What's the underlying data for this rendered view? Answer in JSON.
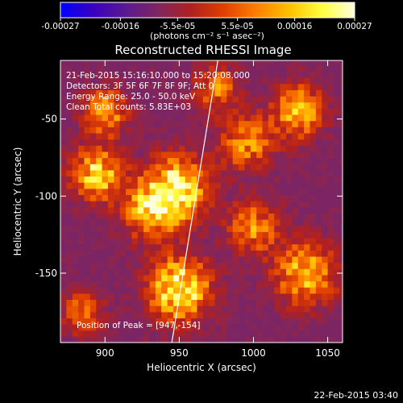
{
  "colorbar": {
    "ticks": [
      "-0.00027",
      "-0.00016",
      "-5.5e-05",
      "5.5e-05",
      "0.00016",
      "0.00027"
    ],
    "tick_values": [
      -0.00027,
      -0.00016,
      -5.5e-05,
      5.5e-05,
      0.00016,
      0.00027
    ],
    "range": [
      -0.00027,
      0.00027
    ],
    "unit_label": "(photons cm⁻² s⁻¹ asec⁻²)",
    "colormap": [
      "#0000ff",
      "#3a00c0",
      "#5a1a90",
      "#80265f",
      "#b02020",
      "#e04000",
      "#ff8000",
      "#ffc000",
      "#ffff40",
      "#ffffe0"
    ]
  },
  "chart_data": {
    "type": "heatmap",
    "title": "Reconstructed RHESSI Image",
    "xlabel": "Heliocentric X (arcsec)",
    "ylabel": "Heliocentric Y (arcsec)",
    "xlim": [
      870,
      1060
    ],
    "ylim": [
      -195,
      -12
    ],
    "x_ticks": [
      900,
      950,
      1000,
      1050
    ],
    "y_ticks": [
      -50,
      -100,
      -150
    ],
    "x_tick_labels": [
      "900",
      "950",
      "1000",
      "1050"
    ],
    "y_tick_labels": [
      "-50",
      "-100",
      "-150"
    ],
    "pixel_size_arcsec": 4,
    "hot_spots": [
      {
        "x": 948,
        "y": -95,
        "amp": 1.0,
        "sigma": 14
      },
      {
        "x": 950,
        "y": -160,
        "amp": 1.0,
        "sigma": 14
      },
      {
        "x": 930,
        "y": -110,
        "amp": 0.7,
        "sigma": 12
      },
      {
        "x": 895,
        "y": -85,
        "amp": 0.8,
        "sigma": 12
      },
      {
        "x": 900,
        "y": -45,
        "amp": 0.7,
        "sigma": 10
      },
      {
        "x": 995,
        "y": -65,
        "amp": 0.6,
        "sigma": 12
      },
      {
        "x": 1030,
        "y": -45,
        "amp": 0.7,
        "sigma": 12
      },
      {
        "x": 1035,
        "y": -150,
        "amp": 0.75,
        "sigma": 14
      },
      {
        "x": 1000,
        "y": -120,
        "amp": 0.55,
        "sigma": 12
      },
      {
        "x": 975,
        "y": -30,
        "amp": 0.5,
        "sigma": 10
      },
      {
        "x": 885,
        "y": -175,
        "amp": 0.45,
        "sigma": 10
      }
    ],
    "limb_line": {
      "x": [
        976,
        945
      ],
      "y": [
        -12,
        -195
      ]
    },
    "annotations": [
      "21-Feb-2015 15:16:10.000 to 15:20:08.000",
      "Detectors: 3F 5F 6F 7F 8F 9F; Att 0",
      "Energy Range: 25.0 - 50.0 keV",
      "Clean     Total counts: 5.83E+03"
    ],
    "peak_label": "Position of Peak = [947,-154]",
    "peak": [
      947,
      -154
    ]
  },
  "footer": {
    "timestamp": "22-Feb-2015 03:40"
  }
}
